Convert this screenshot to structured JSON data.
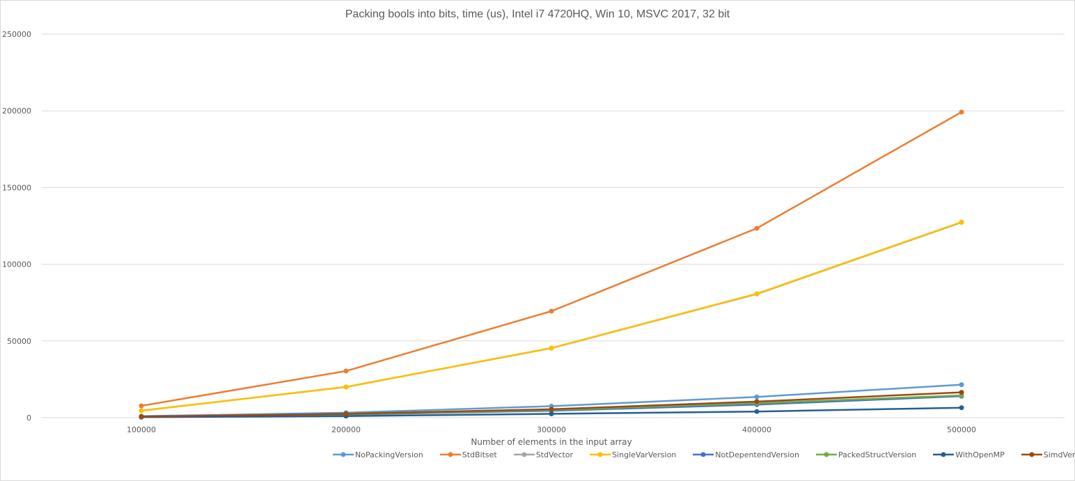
{
  "chart_data": {
    "type": "line",
    "title": "Packing bools into bits, time (us), Intel i7 4720HQ, Win 10, MSVC 2017, 32 bit",
    "xlabel": "Number of elements in the input array",
    "ylabel": "",
    "x": [
      100000,
      200000,
      300000,
      400000,
      500000
    ],
    "categories": [
      "100000",
      "200000",
      "300000",
      "400000",
      "500000"
    ],
    "ylim": [
      0,
      250000
    ],
    "yticks": [
      "0",
      "50000",
      "100000",
      "150000",
      "200000",
      "250000"
    ],
    "grid": true,
    "legend_position": "bottom",
    "series": [
      {
        "name": "NoPackingVersion",
        "color": "#5b9bd5",
        "values": [
          1000,
          3200,
          7500,
          13500,
          21500
        ]
      },
      {
        "name": "StdBitset",
        "color": "#ed7d31",
        "values": [
          7700,
          30400,
          69400,
          123400,
          199200
        ]
      },
      {
        "name": "StdVector",
        "color": "#a5a5a5",
        "values": [
          4600,
          20000,
          45300,
          80600,
          127300
        ]
      },
      {
        "name": "SingleVarVersion",
        "color": "#ffc000",
        "values": [
          4500,
          20000,
          45400,
          80800,
          127500
        ]
      },
      {
        "name": "NotDepentendVersion",
        "color": "#4472c4",
        "values": [
          600,
          2000,
          4500,
          8500,
          14000
        ]
      },
      {
        "name": "PackedStructVersion",
        "color": "#70ad47",
        "values": [
          600,
          2200,
          5000,
          9500,
          14500
        ]
      },
      {
        "name": "WithOpenMP",
        "color": "#255e91",
        "values": [
          300,
          1000,
          2500,
          4000,
          6500
        ]
      },
      {
        "name": "SimdVersion",
        "color": "#9e480e",
        "values": [
          700,
          2500,
          5500,
          10500,
          16500
        ]
      }
    ]
  }
}
